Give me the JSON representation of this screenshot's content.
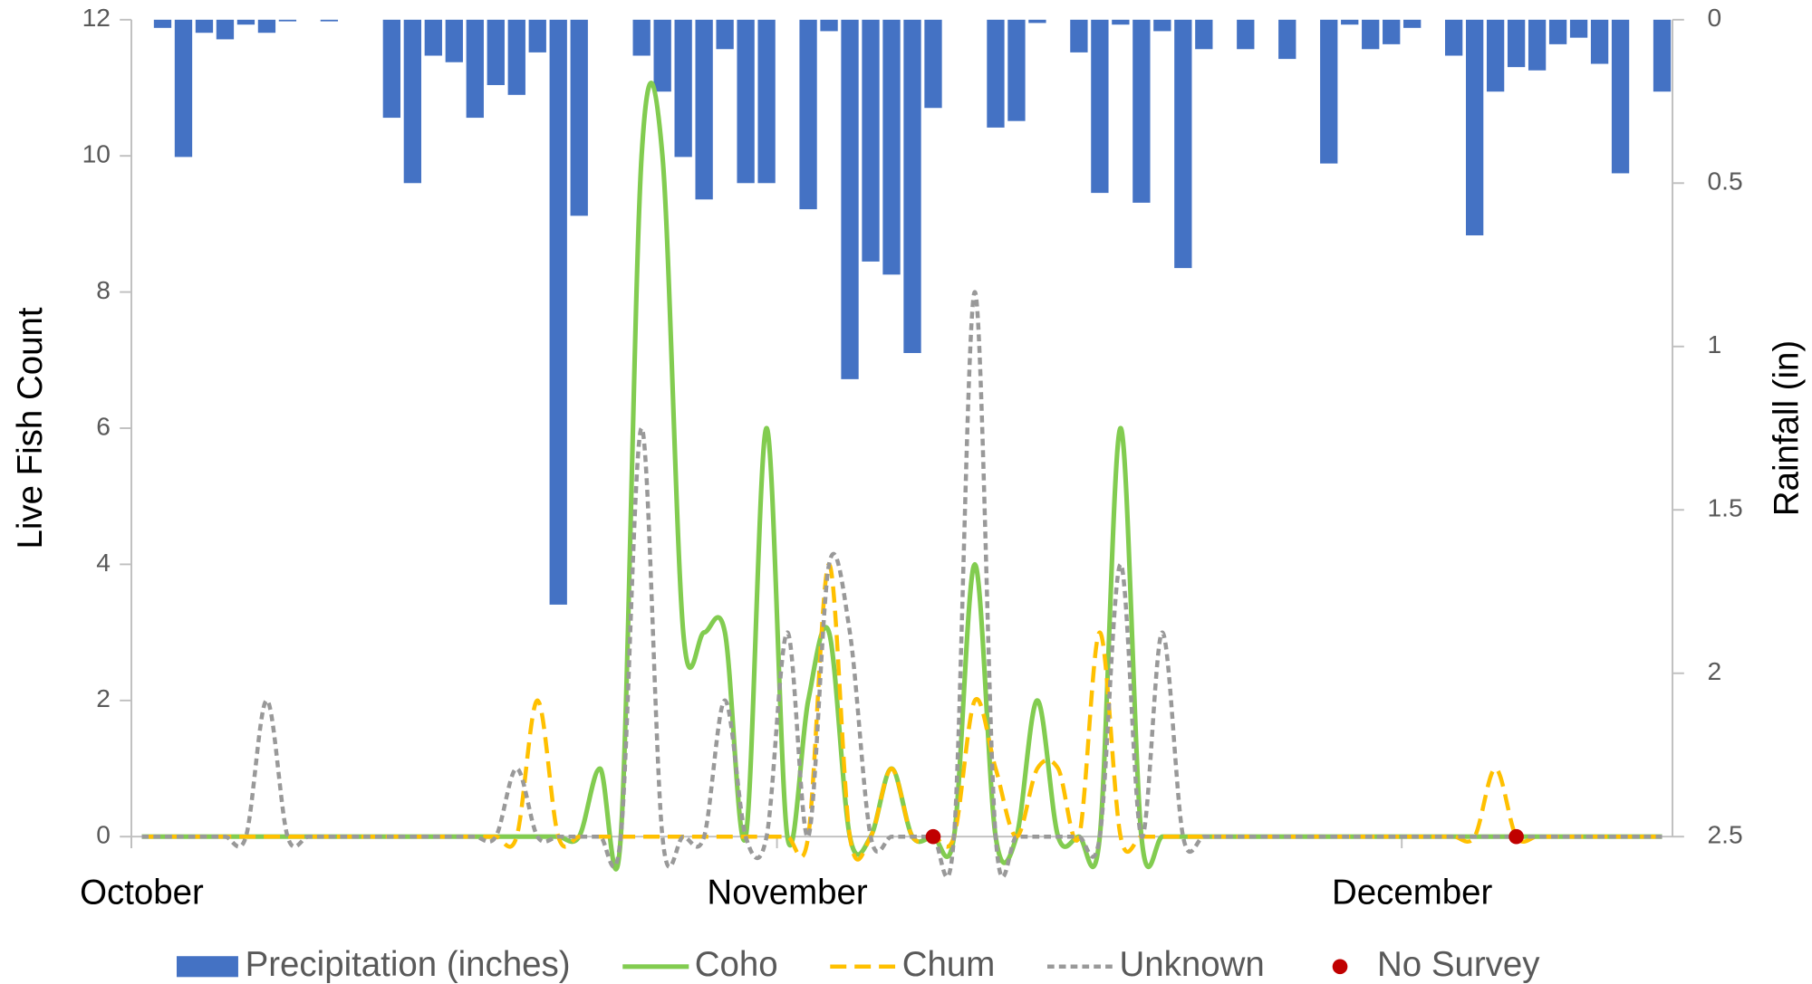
{
  "chart_data": {
    "type": "combo",
    "y_label": "Live Fish Count",
    "y2_label": "Rainfall (in)",
    "categories": [
      "October",
      null,
      null,
      null,
      null,
      null,
      null,
      null,
      null,
      null,
      null,
      null,
      null,
      null,
      null,
      null,
      null,
      null,
      null,
      null,
      null,
      null,
      null,
      null,
      null,
      null,
      null,
      null,
      null,
      null,
      null,
      "November",
      null,
      null,
      null,
      null,
      null,
      null,
      null,
      null,
      null,
      null,
      null,
      null,
      null,
      null,
      null,
      null,
      null,
      null,
      null,
      null,
      null,
      null,
      null,
      null,
      null,
      null,
      null,
      null,
      null,
      "December",
      null,
      null,
      null,
      null,
      null,
      null,
      null,
      null,
      null,
      null,
      null,
      null
    ],
    "ylim": [
      0,
      12
    ],
    "yticks": [
      0,
      2,
      4,
      6,
      8,
      10,
      12
    ],
    "y2lim": [
      0,
      2.5
    ],
    "y2ticks": [
      0,
      0.5,
      1,
      1.5,
      2,
      2.5
    ],
    "y2_inverted": true,
    "legend": "bottom",
    "series": [
      {
        "name": "Precipitation (inches)",
        "type": "bar",
        "axis": "y2",
        "color": "#4472c4",
        "values": [
          0,
          0.025,
          0.42,
          0.04,
          0.06,
          0.015,
          0.04,
          0.005,
          0,
          0.005,
          0,
          0,
          0.3,
          0.5,
          0.11,
          0.13,
          0.3,
          0.2,
          0.23,
          0.1,
          1.79,
          0.6,
          0,
          0,
          0.11,
          0.22,
          0.42,
          0.55,
          0.09,
          0.5,
          0.5,
          0,
          0.58,
          0.035,
          1.1,
          0.74,
          0.78,
          1.02,
          0.27,
          0,
          0,
          0.33,
          0.31,
          0.01,
          0,
          0.1,
          0.53,
          0.015,
          0.56,
          0.035,
          0.76,
          0.09,
          0,
          0.09,
          0,
          0.12,
          0,
          0.44,
          0.015,
          0.09,
          0.075,
          0.025,
          0,
          0.11,
          0.66,
          0.22,
          0.145,
          0.155,
          0.075,
          0.055,
          0.135,
          0.47,
          0,
          0.22
        ]
      },
      {
        "name": "Coho",
        "type": "line",
        "color": "#82cc50",
        "dash": "solid",
        "values": [
          0,
          0,
          0,
          0,
          0,
          0,
          0,
          0,
          0,
          0,
          0,
          0,
          0,
          0,
          0,
          0,
          0,
          0,
          0,
          0,
          0,
          0,
          1,
          0,
          10,
          10,
          3,
          3,
          3,
          0,
          6,
          0,
          2,
          3,
          0,
          0,
          1,
          0,
          0,
          0,
          4,
          0,
          0,
          2,
          0,
          0,
          0,
          6,
          0,
          0,
          0,
          0,
          0,
          0,
          0,
          0,
          0,
          0,
          0,
          0,
          0,
          0,
          0,
          0,
          0,
          0,
          0,
          0,
          0,
          0,
          0,
          0,
          0,
          0
        ]
      },
      {
        "name": "Chum",
        "type": "line",
        "color": "#ffc000",
        "dash": "long",
        "values": [
          0,
          0,
          0,
          0,
          0,
          0,
          0,
          0,
          0,
          0,
          0,
          0,
          0,
          0,
          0,
          0,
          0,
          0,
          0,
          2,
          0,
          0,
          0,
          0,
          0,
          0,
          0,
          0,
          0,
          0,
          0,
          0,
          0,
          4,
          0,
          0,
          1,
          0,
          0,
          0,
          2,
          1,
          0,
          1,
          1,
          0,
          3,
          0,
          0,
          0,
          0,
          0,
          0,
          0,
          0,
          0,
          0,
          0,
          0,
          0,
          0,
          0,
          0,
          0,
          0,
          1,
          0,
          0,
          0,
          0,
          0,
          0,
          0,
          0
        ]
      },
      {
        "name": "Unknown",
        "type": "line",
        "color": "#999999",
        "dash": "short",
        "values": [
          0,
          0,
          0,
          0,
          0,
          0,
          2,
          0,
          0,
          0,
          0,
          0,
          0,
          0,
          0,
          0,
          0,
          0,
          1,
          0,
          0,
          0,
          0,
          0,
          6,
          0,
          0,
          0,
          2,
          0,
          0,
          3,
          0,
          4,
          3,
          0,
          0,
          0,
          0,
          0,
          8,
          0,
          0,
          0,
          0,
          0,
          0,
          4,
          0,
          3,
          0,
          0,
          0,
          0,
          0,
          0,
          0,
          0,
          0,
          0,
          0,
          0,
          0,
          0,
          0,
          0,
          0,
          0,
          0,
          0,
          0,
          0,
          0,
          0
        ]
      },
      {
        "name": "No Survey",
        "type": "scatter",
        "color": "#c00000",
        "values": [
          null,
          null,
          null,
          null,
          null,
          null,
          null,
          null,
          null,
          null,
          null,
          null,
          null,
          null,
          null,
          null,
          null,
          null,
          null,
          null,
          null,
          null,
          null,
          null,
          null,
          null,
          null,
          null,
          null,
          null,
          null,
          null,
          null,
          null,
          null,
          null,
          null,
          null,
          0,
          null,
          null,
          null,
          null,
          null,
          null,
          null,
          null,
          null,
          null,
          null,
          null,
          null,
          null,
          null,
          null,
          null,
          null,
          null,
          null,
          null,
          null,
          null,
          null,
          null,
          null,
          null,
          0,
          null,
          null,
          null,
          null,
          null,
          null,
          null
        ]
      }
    ]
  }
}
